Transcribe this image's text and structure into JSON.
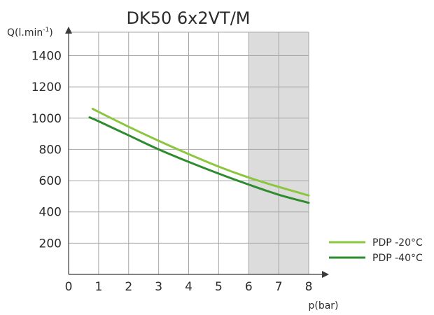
{
  "chart_data": {
    "type": "line",
    "title": "DK50 6x2VT/M",
    "xlabel": "p(bar)",
    "ylabel": "Q(l.min-1)",
    "xlim": [
      0,
      8
    ],
    "ylim": [
      0,
      1550
    ],
    "xticks": [
      "0",
      "1",
      "2",
      "3",
      "4",
      "5",
      "6",
      "7",
      "8"
    ],
    "yticks": [
      "200",
      "400",
      "600",
      "800",
      "1000",
      "1200",
      "1400"
    ],
    "grid": true,
    "shaded_x_range": [
      6,
      8
    ],
    "shade_color": "#dcdcdc",
    "legend_position": "right",
    "series": [
      {
        "name": "PDP -20°C",
        "color": "#8cc63f",
        "x": [
          0.8,
          1,
          2,
          3,
          4,
          5,
          6,
          7,
          8
        ],
        "y": [
          1060,
          1040,
          945,
          855,
          770,
          690,
          620,
          560,
          505
        ]
      },
      {
        "name": "PDP -40°C",
        "color": "#2e8b2e",
        "x": [
          0.7,
          1,
          2,
          3,
          4,
          5,
          6,
          7,
          8
        ],
        "y": [
          1005,
          980,
          890,
          800,
          720,
          645,
          575,
          510,
          458
        ]
      }
    ]
  }
}
